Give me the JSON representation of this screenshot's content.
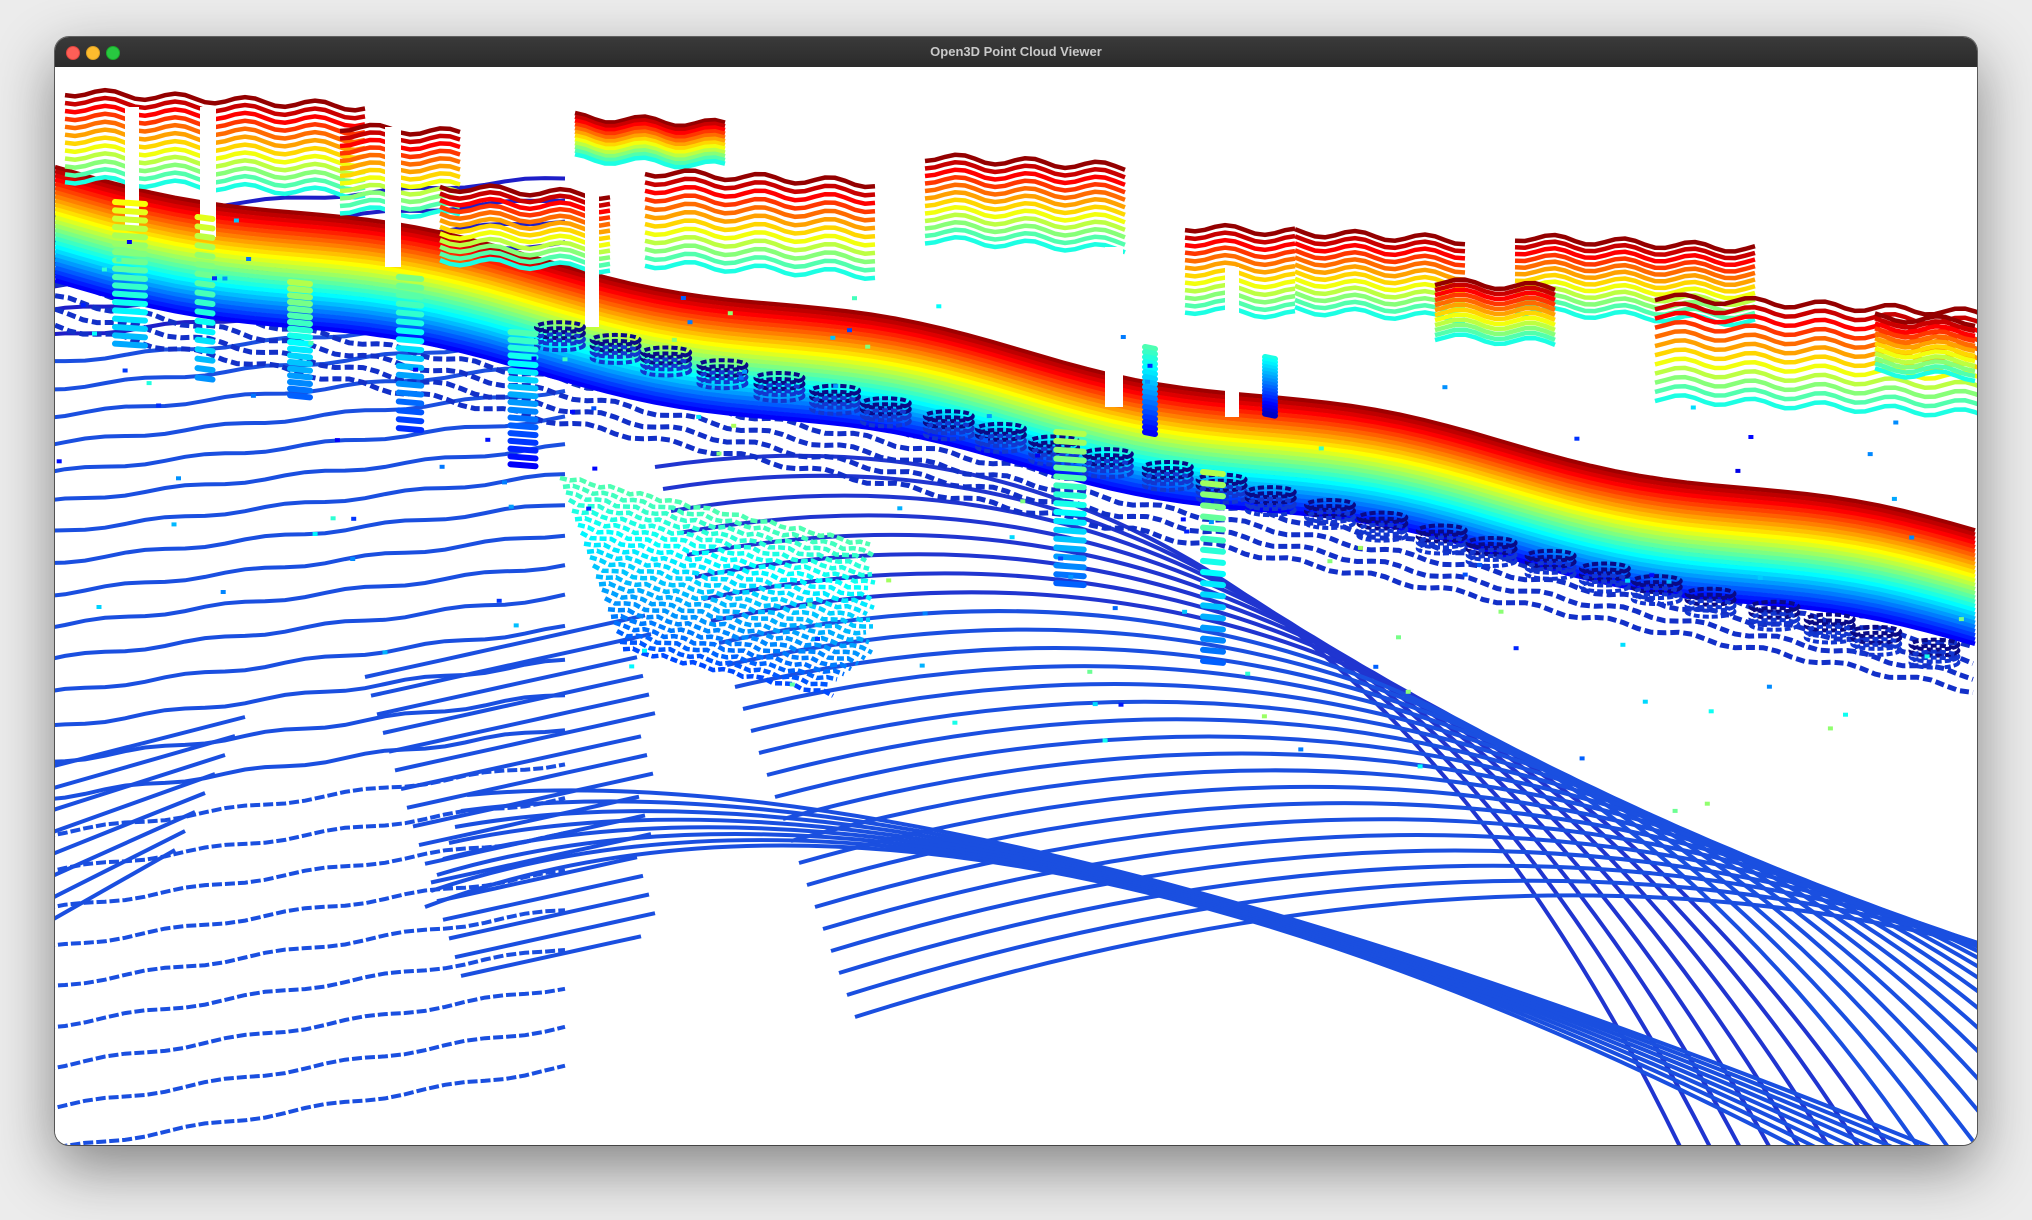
{
  "window": {
    "title": "Open3D Point Cloud Viewer"
  },
  "controls": {
    "close": "close-button",
    "minimize": "minimize-button",
    "maximize": "maximize-button"
  },
  "colors": {
    "titlebar": "#2e2e2e",
    "viewport_background": "#ffffff",
    "colormap": "jet",
    "jet_low": "#00008f",
    "jet_mid": "#00ffff",
    "jet_high": "#ff0000"
  }
}
